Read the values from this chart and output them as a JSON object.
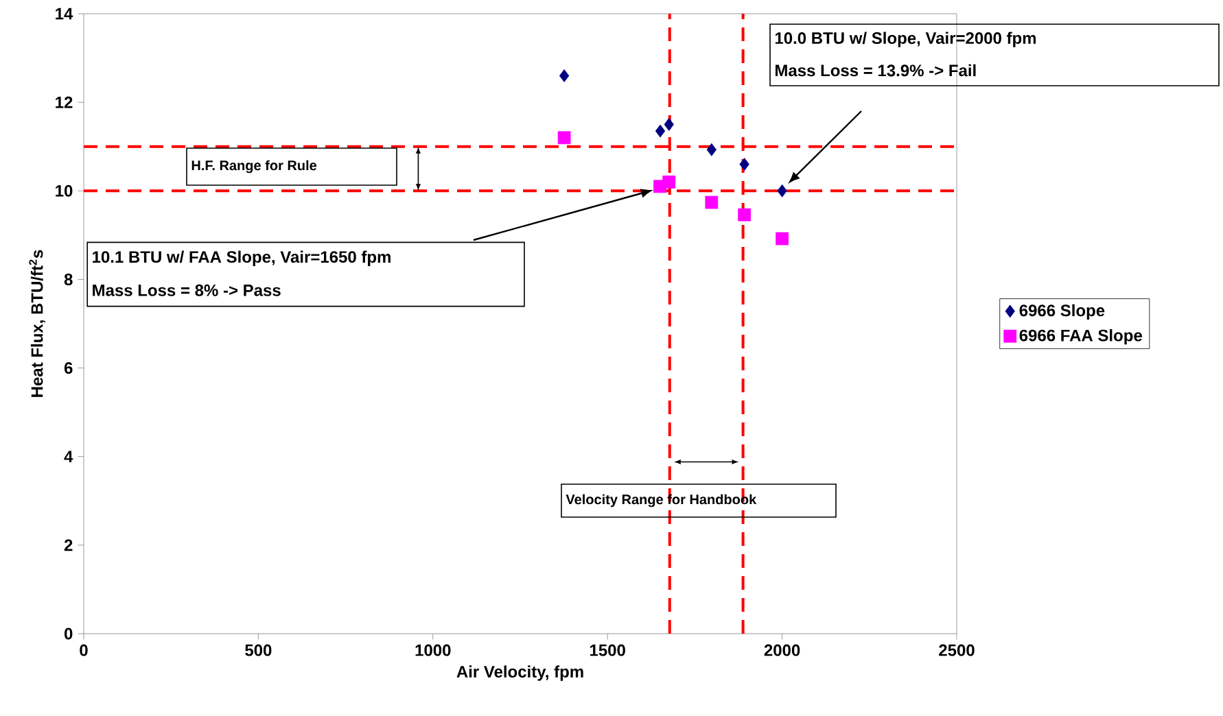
{
  "chart_data": {
    "type": "scatter",
    "xlabel": "Air Velocity, fpm",
    "ylabel": "Heat Flux, BTU/ft$^{2}$s",
    "xlim": [
      0,
      2500
    ],
    "xticks": [
      0,
      500,
      1000,
      1500,
      2000,
      2500
    ],
    "ylim": [
      0,
      14
    ],
    "yticks": [
      0,
      2,
      4,
      6,
      8,
      10,
      12,
      14
    ],
    "series": [
      {
        "name": "6966 Slope",
        "color": "#000080",
        "marker": "diamond",
        "x": [
          1376,
          1651,
          1676,
          1798,
          1892,
          2000
        ],
        "values": [
          12.6,
          11.35,
          11.5,
          10.93,
          10.6,
          10.0
        ]
      },
      {
        "name": "6966 FAA Slope",
        "color": "#ff00ff",
        "marker": "square",
        "x": [
          1376,
          1650,
          1676,
          1798,
          1892,
          2000
        ],
        "values": [
          11.2,
          10.1,
          10.2,
          9.74,
          9.46,
          8.92
        ]
      }
    ],
    "ref_lines": [
      {
        "axis": "y",
        "value": 11,
        "color": "#ff0000",
        "line_style": "dashed"
      },
      {
        "axis": "y",
        "value": 10,
        "color": "#ff0000",
        "line_style": "dashed"
      },
      {
        "axis": "x",
        "value": 1678,
        "color": "#ff0000",
        "line_style": "dashed"
      },
      {
        "axis": "x",
        "value": 1888,
        "color": "#ff0000",
        "line_style": "dashed"
      }
    ],
    "annotations": [
      "10.1 BTU w/ FAA Slope, Vair=1650 fpm",
      "Mass Loss = 8% -> Pass",
      "10.0 BTU w/ Slope, Vair=2000 fpm",
      "Mass Loss = 13.9% -> Fail",
      "H.F. Range for Rule",
      "Velocity Range for Handbook"
    ],
    "legend": "right",
    "grid": false
  }
}
